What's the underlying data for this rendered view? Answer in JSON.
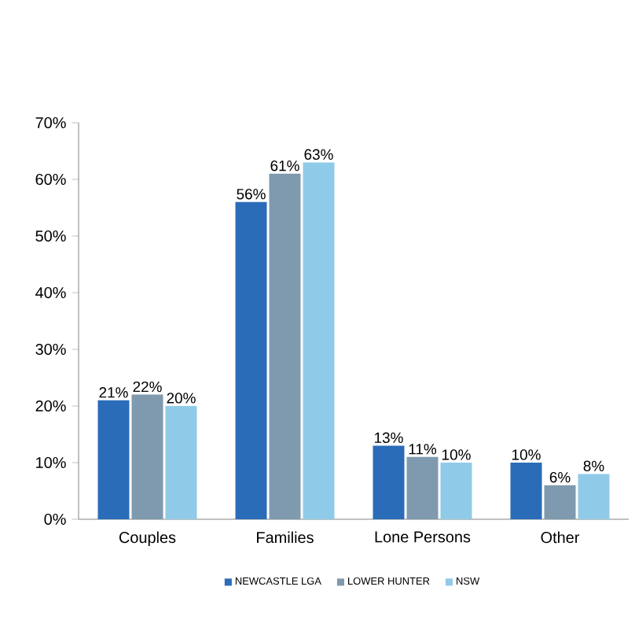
{
  "chart_data": {
    "type": "bar",
    "categories": [
      "Couples",
      "Families",
      "Lone Persons",
      "Other"
    ],
    "series": [
      {
        "name": "NEWCASTLE LGA",
        "color": "#2b6cb8",
        "values": [
          21,
          56,
          13,
          10
        ],
        "value_labels": [
          "21%",
          "56%",
          "13%",
          "10%"
        ]
      },
      {
        "name": "LOWER HUNTER",
        "color": "#7f9aae",
        "values": [
          22,
          61,
          11,
          6
        ],
        "value_labels": [
          "22%",
          "61%",
          "11%",
          "6%"
        ]
      },
      {
        "name": "NSW",
        "color": "#8fcbe8",
        "values": [
          20,
          63,
          10,
          8
        ],
        "value_labels": [
          "20%",
          "63%",
          "10%",
          "8%"
        ]
      }
    ],
    "ylim": [
      0,
      70
    ],
    "yticks": [
      {
        "value": 0,
        "label": "0%"
      },
      {
        "value": 10,
        "label": "10%"
      },
      {
        "value": 20,
        "label": "20%"
      },
      {
        "value": 30,
        "label": "30%"
      },
      {
        "value": 40,
        "label": "40%"
      },
      {
        "value": 50,
        "label": "50%"
      },
      {
        "value": 60,
        "label": "60%"
      },
      {
        "value": 70,
        "label": "70%"
      }
    ],
    "grid": false,
    "legend": "bottom"
  }
}
